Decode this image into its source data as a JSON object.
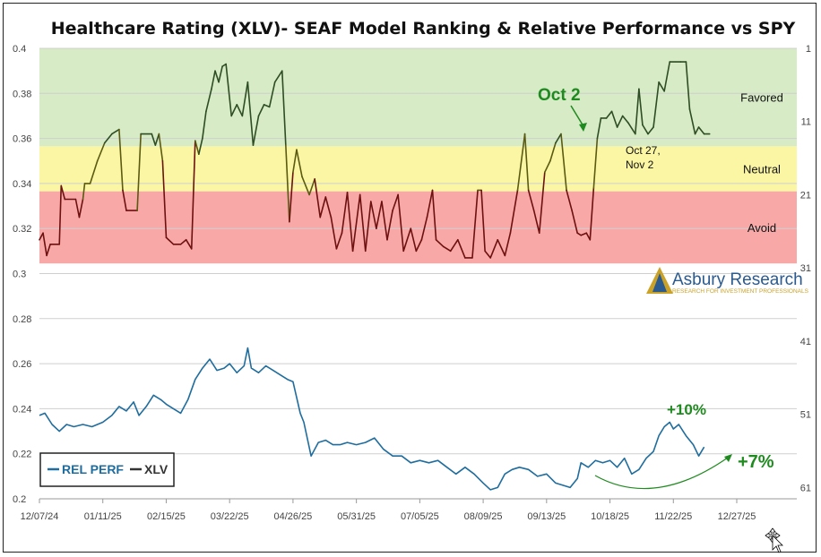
{
  "chart_data": {
    "type": "line",
    "title": "Healthcare Rating (XLV)- SEAF Model Ranking & Relative Performance vs SPY",
    "x_ticks": [
      "12/07/24",
      "01/11/25",
      "02/15/25",
      "03/22/25",
      "04/26/25",
      "05/31/25",
      "07/05/25",
      "08/09/25",
      "09/13/25",
      "10/18/25",
      "11/22/25",
      "12/27/25"
    ],
    "y_left": {
      "min": 0.2,
      "max": 0.4,
      "ticks": [
        "0.2",
        "0.22",
        "0.24",
        "0.26",
        "0.28",
        "0.3",
        "0.32",
        "0.34",
        "0.36",
        "0.38",
        "0.4"
      ]
    },
    "y_right": {
      "ticks": [
        "1",
        "11",
        "21",
        "31",
        "41",
        "51",
        "61"
      ],
      "values": [
        1,
        11,
        21,
        31,
        41,
        51,
        61
      ],
      "reversed": true
    },
    "zones": [
      {
        "name": "Favored",
        "from": 0.3565,
        "to": 0.4,
        "color": "#d6ebc6"
      },
      {
        "name": "Neutral",
        "from": 0.3365,
        "to": 0.3565,
        "color": "#fbf6a3"
      },
      {
        "name": "Avoid",
        "from": 0.3045,
        "to": 0.3365,
        "color": "#f9a8a8"
      }
    ],
    "series": [
      {
        "name": "REL PERF",
        "color": "#1f6d9e",
        "points": [
          [
            "12/07/24",
            0.237
          ],
          [
            "12/10/24",
            0.238
          ],
          [
            "12/14/24",
            0.233
          ],
          [
            "12/18/24",
            0.23
          ],
          [
            "12/22/24",
            0.233
          ],
          [
            "12/26/24",
            0.232
          ],
          [
            "12/31/24",
            0.233
          ],
          [
            "01/05/25",
            0.232
          ],
          [
            "01/11/25",
            0.234
          ],
          [
            "01/16/25",
            0.237
          ],
          [
            "01/20/25",
            0.241
          ],
          [
            "01/24/25",
            0.239
          ],
          [
            "01/28/25",
            0.243
          ],
          [
            "01/31/25",
            0.237
          ],
          [
            "02/04/25",
            0.241
          ],
          [
            "02/08/25",
            0.246
          ],
          [
            "02/12/25",
            0.244
          ],
          [
            "02/15/25",
            0.242
          ],
          [
            "02/19/25",
            0.24
          ],
          [
            "02/23/25",
            0.238
          ],
          [
            "02/27/25",
            0.244
          ],
          [
            "03/03/25",
            0.253
          ],
          [
            "03/07/25",
            0.258
          ],
          [
            "03/11/25",
            0.262
          ],
          [
            "03/15/25",
            0.257
          ],
          [
            "03/19/25",
            0.258
          ],
          [
            "03/22/25",
            0.26
          ],
          [
            "03/26/25",
            0.256
          ],
          [
            "03/30/25",
            0.259
          ],
          [
            "04/01/25",
            0.267
          ],
          [
            "04/03/25",
            0.258
          ],
          [
            "04/07/25",
            0.256
          ],
          [
            "04/11/25",
            0.259
          ],
          [
            "04/15/25",
            0.257
          ],
          [
            "04/19/25",
            0.255
          ],
          [
            "04/23/25",
            0.253
          ],
          [
            "04/26/25",
            0.252
          ],
          [
            "04/30/25",
            0.238
          ],
          [
            "05/02/25",
            0.234
          ],
          [
            "05/06/25",
            0.219
          ],
          [
            "05/10/25",
            0.225
          ],
          [
            "05/14/25",
            0.226
          ],
          [
            "05/18/25",
            0.224
          ],
          [
            "05/22/25",
            0.224
          ],
          [
            "05/26/25",
            0.225
          ],
          [
            "05/31/25",
            0.224
          ],
          [
            "06/05/25",
            0.225
          ],
          [
            "06/10/25",
            0.227
          ],
          [
            "06/15/25",
            0.222
          ],
          [
            "06/20/25",
            0.219
          ],
          [
            "06/25/25",
            0.219
          ],
          [
            "06/30/25",
            0.216
          ],
          [
            "07/05/25",
            0.217
          ],
          [
            "07/10/25",
            0.216
          ],
          [
            "07/15/25",
            0.217
          ],
          [
            "07/20/25",
            0.214
          ],
          [
            "07/25/25",
            0.211
          ],
          [
            "07/30/25",
            0.214
          ],
          [
            "08/04/25",
            0.211
          ],
          [
            "08/09/25",
            0.207
          ],
          [
            "08/13/25",
            0.204
          ],
          [
            "08/17/25",
            0.205
          ],
          [
            "08/21/25",
            0.211
          ],
          [
            "08/25/25",
            0.213
          ],
          [
            "08/29/25",
            0.214
          ],
          [
            "09/03/25",
            0.213
          ],
          [
            "09/08/25",
            0.21
          ],
          [
            "09/13/25",
            0.211
          ],
          [
            "09/18/25",
            0.207
          ],
          [
            "09/22/25",
            0.206
          ],
          [
            "09/26/25",
            0.205
          ],
          [
            "09/30/25",
            0.209
          ],
          [
            "10/02/25",
            0.216
          ],
          [
            "10/06/25",
            0.214
          ],
          [
            "10/10/25",
            0.217
          ],
          [
            "10/14/25",
            0.216
          ],
          [
            "10/18/25",
            0.217
          ],
          [
            "10/22/25",
            0.214
          ],
          [
            "10/26/25",
            0.218
          ],
          [
            "10/30/25",
            0.211
          ],
          [
            "11/03/25",
            0.213
          ],
          [
            "11/07/25",
            0.218
          ],
          [
            "11/11/25",
            0.221
          ],
          [
            "11/14/25",
            0.228
          ],
          [
            "11/17/25",
            0.232
          ],
          [
            "11/20/25",
            0.234
          ],
          [
            "11/22/25",
            0.231
          ],
          [
            "11/25/25",
            0.233
          ],
          [
            "11/29/25",
            0.228
          ],
          [
            "12/03/25",
            0.224
          ],
          [
            "12/06/25",
            0.219
          ],
          [
            "12/09/25",
            0.223
          ]
        ]
      },
      {
        "name": "XLV",
        "axis": "right",
        "color_ranges": [
          {
            "zone": "Favored",
            "color": "#2e4d25"
          },
          {
            "zone": "Neutral",
            "color": "#5a5a12"
          },
          {
            "zone": "Avoid",
            "color": "#6d1010"
          }
        ],
        "points": [
          [
            "12/07/24",
            0.315
          ],
          [
            "12/09/24",
            0.318
          ],
          [
            "12/11/24",
            0.308
          ],
          [
            "12/13/24",
            0.313
          ],
          [
            "12/18/24",
            0.313
          ],
          [
            "12/19/24",
            0.339
          ],
          [
            "12/21/24",
            0.333
          ],
          [
            "12/27/24",
            0.333
          ],
          [
            "12/29/24",
            0.325
          ],
          [
            "12/31/24",
            0.333
          ],
          [
            "01/01/25",
            0.34
          ],
          [
            "01/04/25",
            0.34
          ],
          [
            "01/08/25",
            0.35
          ],
          [
            "01/12/25",
            0.358
          ],
          [
            "01/16/25",
            0.362
          ],
          [
            "01/20/25",
            0.364
          ],
          [
            "01/22/25",
            0.337
          ],
          [
            "01/24/25",
            0.328
          ],
          [
            "01/30/25",
            0.328
          ],
          [
            "02/01/25",
            0.362
          ],
          [
            "02/07/25",
            0.362
          ],
          [
            "02/09/25",
            0.357
          ],
          [
            "02/11/25",
            0.362
          ],
          [
            "02/13/25",
            0.35
          ],
          [
            "02/15/25",
            0.316
          ],
          [
            "02/19/25",
            0.313
          ],
          [
            "02/23/25",
            0.313
          ],
          [
            "02/26/25",
            0.315
          ],
          [
            "03/01/25",
            0.311
          ],
          [
            "03/03/25",
            0.359
          ],
          [
            "03/05/25",
            0.353
          ],
          [
            "03/07/25",
            0.36
          ],
          [
            "03/09/25",
            0.372
          ],
          [
            "03/12/25",
            0.382
          ],
          [
            "03/14/25",
            0.39
          ],
          [
            "03/16/25",
            0.385
          ],
          [
            "03/18/25",
            0.392
          ],
          [
            "03/20/25",
            0.393
          ],
          [
            "03/23/25",
            0.37
          ],
          [
            "03/26/25",
            0.375
          ],
          [
            "03/29/25",
            0.37
          ],
          [
            "04/01/25",
            0.385
          ],
          [
            "04/04/25",
            0.357
          ],
          [
            "04/07/25",
            0.37
          ],
          [
            "04/10/25",
            0.375
          ],
          [
            "04/13/25",
            0.374
          ],
          [
            "04/16/25",
            0.385
          ],
          [
            "04/20/25",
            0.39
          ],
          [
            "04/22/25",
            0.357
          ],
          [
            "04/24/25",
            0.323
          ],
          [
            "04/26/25",
            0.345
          ],
          [
            "04/28/25",
            0.355
          ],
          [
            "05/01/25",
            0.343
          ],
          [
            "05/05/25",
            0.335
          ],
          [
            "05/08/25",
            0.342
          ],
          [
            "05/11/25",
            0.325
          ],
          [
            "05/14/25",
            0.334
          ],
          [
            "05/17/25",
            0.325
          ],
          [
            "05/20/25",
            0.311
          ],
          [
            "05/23/25",
            0.318
          ],
          [
            "05/26/25",
            0.336
          ],
          [
            "05/29/25",
            0.31
          ],
          [
            "06/02/25",
            0.335
          ],
          [
            "06/05/25",
            0.31
          ],
          [
            "06/08/25",
            0.332
          ],
          [
            "06/11/25",
            0.32
          ],
          [
            "06/14/25",
            0.332
          ],
          [
            "06/17/25",
            0.315
          ],
          [
            "06/20/25",
            0.328
          ],
          [
            "06/23/25",
            0.335
          ],
          [
            "06/26/25",
            0.31
          ],
          [
            "06/30/25",
            0.32
          ],
          [
            "07/03/25",
            0.31
          ],
          [
            "07/06/25",
            0.315
          ],
          [
            "07/09/25",
            0.325
          ],
          [
            "07/12/25",
            0.337
          ],
          [
            "07/14/25",
            0.315
          ],
          [
            "07/18/25",
            0.312
          ],
          [
            "07/22/25",
            0.31
          ],
          [
            "07/26/25",
            0.315
          ],
          [
            "07/30/25",
            0.307
          ],
          [
            "08/03/25",
            0.307
          ],
          [
            "08/06/25",
            0.337
          ],
          [
            "08/08/25",
            0.337
          ],
          [
            "08/10/25",
            0.31
          ],
          [
            "08/13/25",
            0.307
          ],
          [
            "08/17/25",
            0.315
          ],
          [
            "08/21/25",
            0.308
          ],
          [
            "08/24/25",
            0.318
          ],
          [
            "08/28/25",
            0.337
          ],
          [
            "09/01/25",
            0.362
          ],
          [
            "09/03/25",
            0.337
          ],
          [
            "09/06/25",
            0.328
          ],
          [
            "09/09/25",
            0.318
          ],
          [
            "09/12/25",
            0.345
          ],
          [
            "09/15/25",
            0.35
          ],
          [
            "09/18/25",
            0.358
          ],
          [
            "09/21/25",
            0.362
          ],
          [
            "09/24/25",
            0.337
          ],
          [
            "09/27/25",
            0.328
          ],
          [
            "09/30/25",
            0.318
          ],
          [
            "10/02/25",
            0.317
          ],
          [
            "10/05/25",
            0.318
          ],
          [
            "10/07/25",
            0.315
          ],
          [
            "10/09/25",
            0.338
          ],
          [
            "10/11/25",
            0.36
          ],
          [
            "10/13/25",
            0.369
          ],
          [
            "10/16/25",
            0.369
          ],
          [
            "10/19/25",
            0.372
          ],
          [
            "10/22/25",
            0.365
          ],
          [
            "10/25/25",
            0.37
          ],
          [
            "10/28/25",
            0.367
          ],
          [
            "11/01/25",
            0.362
          ],
          [
            "11/03/25",
            0.382
          ],
          [
            "11/05/25",
            0.366
          ],
          [
            "11/08/25",
            0.362
          ],
          [
            "11/11/25",
            0.365
          ],
          [
            "11/14/25",
            0.385
          ],
          [
            "11/17/25",
            0.381
          ],
          [
            "11/20/25",
            0.394
          ],
          [
            "11/26/25",
            0.394
          ],
          [
            "11/29/25",
            0.394
          ],
          [
            "12/01/25",
            0.373
          ],
          [
            "12/04/25",
            0.362
          ],
          [
            "12/06/25",
            0.365
          ],
          [
            "12/09/25",
            0.362
          ],
          [
            "12/12/25",
            0.362
          ]
        ]
      }
    ],
    "legend": {
      "position": "bottom-left",
      "items": [
        "REL PERF",
        "XLV"
      ]
    },
    "annotations": {
      "oct2": "Oct 2",
      "oct27_line1": "Oct 27,",
      "oct27_line2": "Nov 2",
      "plus10": "+10%",
      "plus7": "+7%"
    },
    "grid": true
  },
  "logo": {
    "name": "Asbury Research",
    "tagline": "RESEARCH FOR INVESTMENT PROFESSIONALS"
  }
}
